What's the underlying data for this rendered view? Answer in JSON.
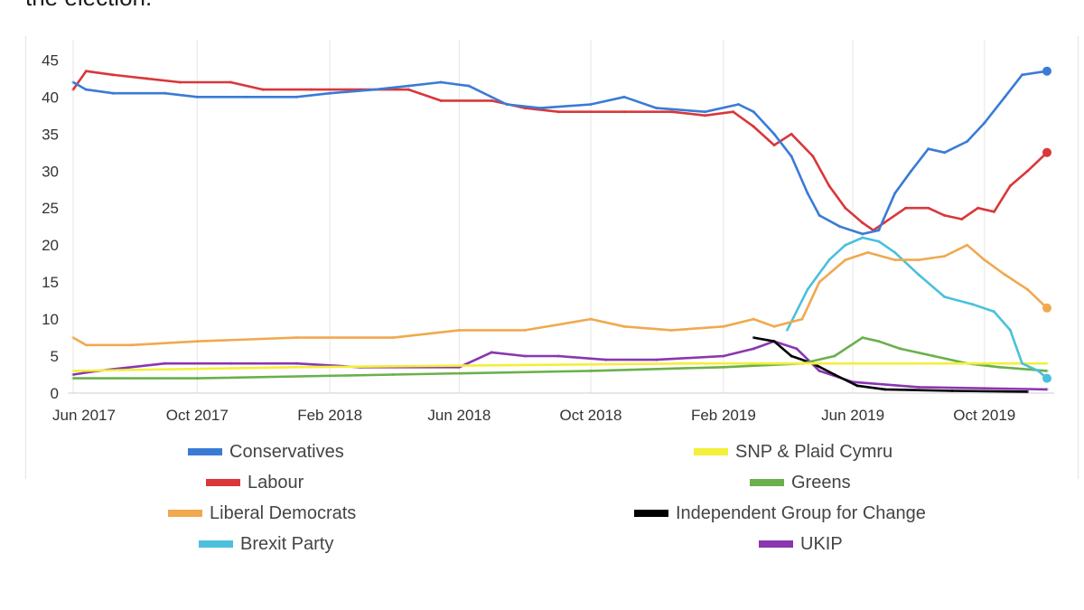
{
  "page": {
    "top_text": "the election."
  },
  "chart_data": {
    "type": "line",
    "title": "",
    "xlabel": "",
    "ylabel": "",
    "x_range": [
      "2017-06-08",
      "2019-11-28"
    ],
    "ylim": [
      0,
      47
    ],
    "y_ticks": [
      0,
      5,
      10,
      15,
      20,
      25,
      30,
      35,
      40,
      45
    ],
    "x_ticks": [
      {
        "date": "2017-06-08",
        "label": "Jun 2017"
      },
      {
        "date": "2017-10-01",
        "label": "Oct 2017"
      },
      {
        "date": "2018-02-01",
        "label": "Feb 2018"
      },
      {
        "date": "2018-06-01",
        "label": "Jun 2018"
      },
      {
        "date": "2018-10-01",
        "label": "Oct 2018"
      },
      {
        "date": "2019-02-01",
        "label": "Feb 2019"
      },
      {
        "date": "2019-06-01",
        "label": "Jun 2019"
      },
      {
        "date": "2019-10-01",
        "label": "Oct 2019"
      }
    ],
    "grid": "vertical",
    "legend_position": "bottom, two columns",
    "series": [
      {
        "name": "Conservatives",
        "color": "#3a7bd5",
        "points": [
          [
            "2017-06-08",
            42
          ],
          [
            "2017-06-20",
            41
          ],
          [
            "2017-07-15",
            40.5
          ],
          [
            "2017-09-01",
            40.5
          ],
          [
            "2017-10-01",
            40
          ],
          [
            "2017-11-15",
            40
          ],
          [
            "2018-01-01",
            40
          ],
          [
            "2018-02-01",
            40.5
          ],
          [
            "2018-03-15",
            41
          ],
          [
            "2018-04-15",
            41.5
          ],
          [
            "2018-05-15",
            42
          ],
          [
            "2018-06-10",
            41.5
          ],
          [
            "2018-07-15",
            39
          ],
          [
            "2018-08-15",
            38.5
          ],
          [
            "2018-10-01",
            39
          ],
          [
            "2018-11-01",
            40
          ],
          [
            "2018-12-01",
            38.5
          ],
          [
            "2019-01-15",
            38
          ],
          [
            "2019-02-15",
            39
          ],
          [
            "2019-03-01",
            38
          ],
          [
            "2019-03-20",
            35
          ],
          [
            "2019-04-05",
            32
          ],
          [
            "2019-04-20",
            27
          ],
          [
            "2019-05-01",
            24
          ],
          [
            "2019-05-20",
            22.5
          ],
          [
            "2019-06-10",
            21.5
          ],
          [
            "2019-06-25",
            22
          ],
          [
            "2019-07-10",
            27
          ],
          [
            "2019-07-25",
            30
          ],
          [
            "2019-08-10",
            33
          ],
          [
            "2019-08-25",
            32.5
          ],
          [
            "2019-09-15",
            34
          ],
          [
            "2019-10-01",
            36.5
          ],
          [
            "2019-10-20",
            40
          ],
          [
            "2019-11-05",
            43
          ],
          [
            "2019-11-28",
            43.5
          ]
        ]
      },
      {
        "name": "Labour",
        "color": "#d9373a",
        "points": [
          [
            "2017-06-08",
            41
          ],
          [
            "2017-06-20",
            43.5
          ],
          [
            "2017-07-15",
            43
          ],
          [
            "2017-08-15",
            42.5
          ],
          [
            "2017-09-15",
            42
          ],
          [
            "2017-11-01",
            42
          ],
          [
            "2017-12-01",
            41
          ],
          [
            "2018-01-15",
            41
          ],
          [
            "2018-03-01",
            41
          ],
          [
            "2018-04-15",
            41
          ],
          [
            "2018-05-15",
            39.5
          ],
          [
            "2018-07-01",
            39.5
          ],
          [
            "2018-08-01",
            38.5
          ],
          [
            "2018-09-01",
            38
          ],
          [
            "2018-11-01",
            38
          ],
          [
            "2018-12-15",
            38
          ],
          [
            "2019-01-15",
            37.5
          ],
          [
            "2019-02-10",
            38
          ],
          [
            "2019-03-01",
            36
          ],
          [
            "2019-03-20",
            33.5
          ],
          [
            "2019-04-05",
            35
          ],
          [
            "2019-04-25",
            32
          ],
          [
            "2019-05-10",
            28
          ],
          [
            "2019-05-25",
            25
          ],
          [
            "2019-06-10",
            23
          ],
          [
            "2019-06-20",
            22
          ],
          [
            "2019-06-30",
            23
          ],
          [
            "2019-07-20",
            25
          ],
          [
            "2019-08-10",
            25
          ],
          [
            "2019-08-25",
            24
          ],
          [
            "2019-09-10",
            23.5
          ],
          [
            "2019-09-25",
            25
          ],
          [
            "2019-10-10",
            24.5
          ],
          [
            "2019-10-25",
            28
          ],
          [
            "2019-11-10",
            30
          ],
          [
            "2019-11-28",
            32.5
          ]
        ]
      },
      {
        "name": "Liberal Democrats",
        "color": "#f0a94f",
        "points": [
          [
            "2017-06-08",
            7.5
          ],
          [
            "2017-06-20",
            6.5
          ],
          [
            "2017-08-01",
            6.5
          ],
          [
            "2017-10-01",
            7
          ],
          [
            "2018-01-01",
            7.5
          ],
          [
            "2018-04-01",
            7.5
          ],
          [
            "2018-06-01",
            8.5
          ],
          [
            "2018-08-01",
            8.5
          ],
          [
            "2018-10-01",
            10
          ],
          [
            "2018-11-01",
            9
          ],
          [
            "2018-12-15",
            8.5
          ],
          [
            "2019-02-01",
            9
          ],
          [
            "2019-03-01",
            10
          ],
          [
            "2019-03-20",
            9
          ],
          [
            "2019-04-15",
            10
          ],
          [
            "2019-05-01",
            15
          ],
          [
            "2019-05-25",
            18
          ],
          [
            "2019-06-15",
            19
          ],
          [
            "2019-07-10",
            18
          ],
          [
            "2019-08-01",
            18
          ],
          [
            "2019-08-25",
            18.5
          ],
          [
            "2019-09-15",
            20
          ],
          [
            "2019-10-01",
            18
          ],
          [
            "2019-10-20",
            16
          ],
          [
            "2019-11-10",
            14
          ],
          [
            "2019-11-28",
            11.5
          ]
        ]
      },
      {
        "name": "Brexit Party",
        "color": "#4ac0dd",
        "points": [
          [
            "2019-04-01",
            8.5
          ],
          [
            "2019-04-20",
            14
          ],
          [
            "2019-05-10",
            18
          ],
          [
            "2019-05-25",
            20
          ],
          [
            "2019-06-10",
            21
          ],
          [
            "2019-06-25",
            20.5
          ],
          [
            "2019-07-10",
            19
          ],
          [
            "2019-08-01",
            16
          ],
          [
            "2019-08-25",
            13
          ],
          [
            "2019-09-20",
            12
          ],
          [
            "2019-10-10",
            11
          ],
          [
            "2019-10-25",
            8.5
          ],
          [
            "2019-11-05",
            4
          ],
          [
            "2019-11-20",
            3
          ],
          [
            "2019-11-28",
            2
          ]
        ]
      },
      {
        "name": "SNP & Plaid Cymru",
        "color": "#f3ef3a",
        "points": [
          [
            "2017-06-08",
            3
          ],
          [
            "2018-01-01",
            3.5
          ],
          [
            "2019-01-01",
            4
          ],
          [
            "2019-06-01",
            4
          ],
          [
            "2019-11-28",
            4
          ]
        ]
      },
      {
        "name": "Greens",
        "color": "#6ab04c",
        "points": [
          [
            "2017-06-08",
            2
          ],
          [
            "2017-10-01",
            2
          ],
          [
            "2018-04-01",
            2.5
          ],
          [
            "2018-10-01",
            3
          ],
          [
            "2019-02-01",
            3.5
          ],
          [
            "2019-04-15",
            4
          ],
          [
            "2019-05-15",
            5
          ],
          [
            "2019-06-10",
            7.5
          ],
          [
            "2019-06-25",
            7
          ],
          [
            "2019-07-15",
            6
          ],
          [
            "2019-08-15",
            5
          ],
          [
            "2019-09-15",
            4
          ],
          [
            "2019-10-15",
            3.5
          ],
          [
            "2019-11-28",
            3
          ]
        ]
      },
      {
        "name": "Independent Group for Change",
        "color": "#000000",
        "points": [
          [
            "2019-03-01",
            7.5
          ],
          [
            "2019-03-20",
            7
          ],
          [
            "2019-04-05",
            5
          ],
          [
            "2019-04-25",
            4
          ],
          [
            "2019-05-15",
            2.5
          ],
          [
            "2019-06-05",
            1
          ],
          [
            "2019-07-01",
            0.5
          ],
          [
            "2019-09-01",
            0.3
          ],
          [
            "2019-11-10",
            0.2
          ]
        ]
      },
      {
        "name": "UKIP",
        "color": "#8a36b0",
        "points": [
          [
            "2017-06-08",
            2.5
          ],
          [
            "2017-07-01",
            3
          ],
          [
            "2017-09-01",
            4
          ],
          [
            "2017-11-01",
            4
          ],
          [
            "2018-01-01",
            4
          ],
          [
            "2018-03-01",
            3.5
          ],
          [
            "2018-06-01",
            3.5
          ],
          [
            "2018-07-01",
            5.5
          ],
          [
            "2018-08-01",
            5
          ],
          [
            "2018-09-01",
            5
          ],
          [
            "2018-10-15",
            4.5
          ],
          [
            "2018-12-01",
            4.5
          ],
          [
            "2019-02-01",
            5
          ],
          [
            "2019-03-01",
            6
          ],
          [
            "2019-03-20",
            7
          ],
          [
            "2019-04-10",
            6
          ],
          [
            "2019-05-01",
            3
          ],
          [
            "2019-06-01",
            1.5
          ],
          [
            "2019-08-01",
            0.8
          ],
          [
            "2019-11-28",
            0.5
          ]
        ]
      }
    ]
  }
}
